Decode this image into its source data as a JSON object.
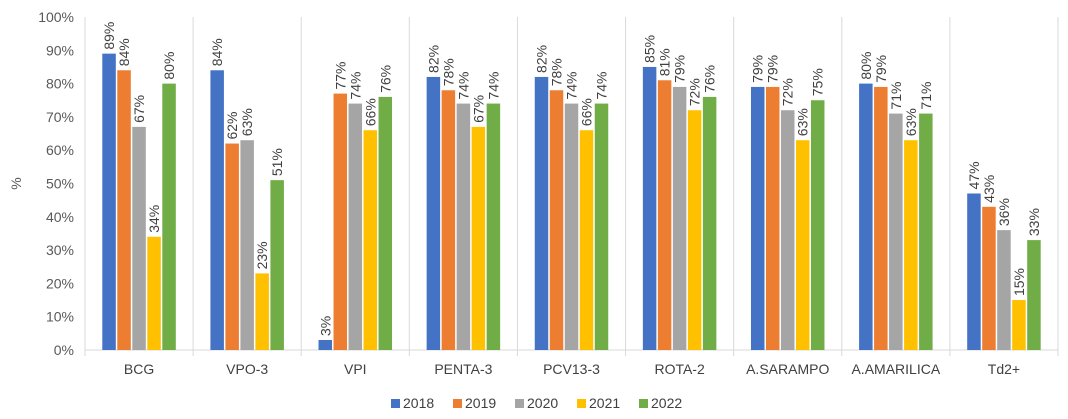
{
  "chart_data": {
    "type": "bar",
    "title": "",
    "xlabel": "",
    "ylabel": "%",
    "ylim": [
      0,
      100
    ],
    "yticks": [
      0,
      10,
      20,
      30,
      40,
      50,
      60,
      70,
      80,
      90,
      100
    ],
    "ytick_suffix": "%",
    "grid": false,
    "legend_position": "bottom",
    "categories": [
      "BCG",
      "VPO-3",
      "VPI",
      "PENTA-3",
      "PCV13-3",
      "ROTA-2",
      "A.SARAMPO",
      "A.AMARILICA",
      "Td2+"
    ],
    "series": [
      {
        "name": "2018",
        "color": "#4472C4",
        "values": [
          89,
          84,
          3,
          82,
          82,
          85,
          79,
          80,
          47
        ]
      },
      {
        "name": "2019",
        "color": "#ED7D31",
        "values": [
          84,
          62,
          77,
          78,
          78,
          81,
          79,
          79,
          43
        ]
      },
      {
        "name": "2020",
        "color": "#A5A5A5",
        "values": [
          67,
          63,
          74,
          74,
          74,
          79,
          72,
          71,
          36
        ]
      },
      {
        "name": "2021",
        "color": "#FFC000",
        "values": [
          34,
          23,
          66,
          67,
          66,
          72,
          63,
          63,
          15
        ]
      },
      {
        "name": "2022",
        "color": "#70AD47",
        "values": [
          80,
          51,
          76,
          74,
          74,
          76,
          75,
          71,
          33
        ]
      }
    ],
    "data_label_suffix": "%"
  }
}
